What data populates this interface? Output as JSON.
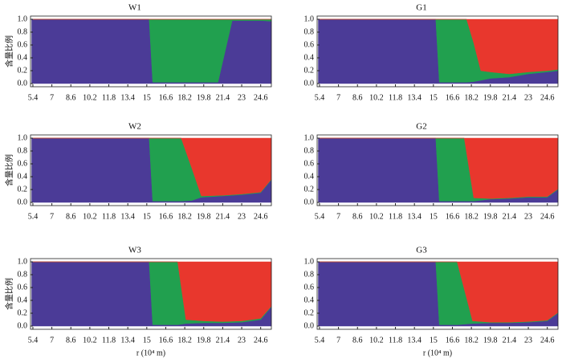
{
  "chart_data": [
    {
      "type": "area",
      "title": "W1",
      "ylabel": "含量比例",
      "x": [
        5.3,
        7,
        8.6,
        10.2,
        11.8,
        13.4,
        15.2,
        15.5,
        16.6,
        18.2,
        19.8,
        21.0,
        22.2,
        23,
        24.6,
        25.5
      ],
      "series": [
        {
          "name": "purple",
          "color": "#4b3b97",
          "values": [
            1,
            1,
            1,
            1,
            1,
            1,
            1,
            0.02,
            0.02,
            0.02,
            0.02,
            0.02,
            0.98,
            0.98,
            0.98,
            0.97
          ]
        },
        {
          "name": "green",
          "color": "#21a04f",
          "values": [
            0,
            0,
            0,
            0,
            0,
            0,
            0,
            0.98,
            0.98,
            0.98,
            0.98,
            0.98,
            0.02,
            0.02,
            0.02,
            0.03
          ]
        },
        {
          "name": "red",
          "color": "#e8372d",
          "values": [
            0,
            0,
            0,
            0,
            0,
            0,
            0,
            0,
            0,
            0,
            0,
            0,
            0,
            0,
            0,
            0
          ]
        }
      ],
      "xlim": [
        5.2,
        25.5
      ],
      "ylim": [
        -0.05,
        1.05
      ],
      "xticks": [
        5.4,
        7,
        8.6,
        10.2,
        11.8,
        13.4,
        15,
        16.6,
        18.2,
        19.8,
        21.4,
        23,
        24.6
      ],
      "yticks": [
        {
          "value": 0,
          "label": "0.0"
        },
        {
          "value": 0.2,
          "label": "0.2"
        },
        {
          "value": 0.4,
          "label": "0.4"
        },
        {
          "value": 0.6,
          "label": "0.6"
        },
        {
          "value": 0.8,
          "label": "0.8"
        },
        {
          "value": 1,
          "label": "1.0"
        }
      ]
    },
    {
      "type": "area",
      "title": "G1",
      "x": [
        5.3,
        7,
        8.6,
        10.2,
        11.8,
        13.4,
        15.2,
        15.5,
        16.6,
        17.8,
        18.4,
        19.0,
        19.8,
        21.4,
        23,
        24.6,
        25.5
      ],
      "series": [
        {
          "name": "purple",
          "color": "#4b3b97",
          "values": [
            1,
            1,
            1,
            1,
            1,
            1,
            1,
            0.02,
            0.02,
            0.02,
            0.03,
            0.05,
            0.08,
            0.1,
            0.15,
            0.18,
            0.2
          ]
        },
        {
          "name": "green",
          "color": "#21a04f",
          "values": [
            0,
            0,
            0,
            0,
            0,
            0,
            0,
            0.98,
            0.98,
            0.98,
            0.6,
            0.15,
            0.1,
            0.05,
            0.03,
            0.02,
            0.02
          ]
        },
        {
          "name": "red",
          "color": "#e8372d",
          "values": [
            0,
            0,
            0,
            0,
            0,
            0,
            0,
            0,
            0,
            0,
            0.37,
            0.8,
            0.82,
            0.85,
            0.82,
            0.8,
            0.78
          ]
        }
      ],
      "xlim": [
        5.2,
        25.5
      ],
      "ylim": [
        -0.05,
        1.05
      ],
      "xticks": [
        5.4,
        7,
        8.6,
        10.2,
        11.8,
        13.4,
        15,
        16.6,
        18.2,
        19.8,
        21.4,
        23,
        24.6
      ],
      "yticks": [
        {
          "value": 0,
          "label": "0.0"
        },
        {
          "value": 0.2,
          "label": "0.2"
        },
        {
          "value": 0.4,
          "label": "0.4"
        },
        {
          "value": 0.6,
          "label": "0.6"
        },
        {
          "value": 0.8,
          "label": "0.8"
        },
        {
          "value": 1,
          "label": "1.0"
        }
      ]
    },
    {
      "type": "area",
      "title": "W2",
      "ylabel": "含量比例",
      "x": [
        5.3,
        7,
        8.6,
        10.2,
        11.8,
        13.4,
        15.2,
        15.5,
        16.6,
        17.9,
        18.8,
        19.6,
        21.4,
        23,
        24.6,
        25.5
      ],
      "series": [
        {
          "name": "purple",
          "color": "#4b3b97",
          "values": [
            1,
            1,
            1,
            1,
            1,
            1,
            1,
            0.02,
            0.02,
            0.02,
            0.03,
            0.08,
            0.1,
            0.12,
            0.15,
            0.35
          ]
        },
        {
          "name": "green",
          "color": "#21a04f",
          "values": [
            0,
            0,
            0,
            0,
            0,
            0,
            0,
            0.98,
            0.98,
            0.98,
            0.5,
            0.02,
            0.01,
            0.01,
            0.01,
            0.01
          ]
        },
        {
          "name": "red",
          "color": "#e8372d",
          "values": [
            0,
            0,
            0,
            0,
            0,
            0,
            0,
            0,
            0,
            0,
            0.47,
            0.9,
            0.89,
            0.87,
            0.84,
            0.64
          ]
        }
      ],
      "xlim": [
        5.2,
        25.5
      ],
      "ylim": [
        -0.05,
        1.05
      ],
      "xticks": [
        5.4,
        7,
        8.6,
        10.2,
        11.8,
        13.4,
        15,
        16.6,
        18.2,
        19.8,
        21.4,
        23,
        24.6
      ],
      "yticks": [
        {
          "value": 0,
          "label": "0.0"
        },
        {
          "value": 0.2,
          "label": "0.2"
        },
        {
          "value": 0.4,
          "label": "0.4"
        },
        {
          "value": 0.6,
          "label": "0.6"
        },
        {
          "value": 0.8,
          "label": "0.8"
        },
        {
          "value": 1,
          "label": "1.0"
        }
      ]
    },
    {
      "type": "area",
      "title": "G2",
      "x": [
        5.3,
        7,
        8.6,
        10.2,
        11.8,
        13.4,
        15.2,
        15.5,
        16.6,
        17.6,
        18.4,
        19.8,
        21.4,
        23,
        24.6,
        25.5
      ],
      "series": [
        {
          "name": "purple",
          "color": "#4b3b97",
          "values": [
            1,
            1,
            1,
            1,
            1,
            1,
            1,
            0.02,
            0.02,
            0.02,
            0.02,
            0.05,
            0.06,
            0.08,
            0.08,
            0.2
          ]
        },
        {
          "name": "green",
          "color": "#21a04f",
          "values": [
            0,
            0,
            0,
            0,
            0,
            0,
            0,
            0.98,
            0.98,
            0.98,
            0.05,
            0.01,
            0.01,
            0.01,
            0.01,
            0.01
          ]
        },
        {
          "name": "red",
          "color": "#e8372d",
          "values": [
            0,
            0,
            0,
            0,
            0,
            0,
            0,
            0,
            0,
            0,
            0.93,
            0.94,
            0.93,
            0.91,
            0.91,
            0.79
          ]
        }
      ],
      "xlim": [
        5.2,
        25.5
      ],
      "ylim": [
        -0.05,
        1.05
      ],
      "xticks": [
        5.4,
        7,
        8.6,
        10.2,
        11.8,
        13.4,
        15,
        16.6,
        18.2,
        19.8,
        21.4,
        23,
        24.6
      ],
      "yticks": [
        {
          "value": 0,
          "label": "0.0"
        },
        {
          "value": 0.2,
          "label": "0.2"
        },
        {
          "value": 0.4,
          "label": "0.4"
        },
        {
          "value": 0.6,
          "label": "0.6"
        },
        {
          "value": 0.8,
          "label": "0.8"
        },
        {
          "value": 1,
          "label": "1.0"
        }
      ]
    },
    {
      "type": "area",
      "title": "W3",
      "ylabel": "含量比例",
      "xlabel": "r (10⁴ m)",
      "x": [
        5.3,
        7,
        8.6,
        10.2,
        11.8,
        13.4,
        15.2,
        15.5,
        16.6,
        17.6,
        18.3,
        19.8,
        21.4,
        23,
        24.6,
        25.5
      ],
      "series": [
        {
          "name": "purple",
          "color": "#4b3b97",
          "values": [
            1,
            1,
            1,
            1,
            1,
            1,
            1,
            0.02,
            0.02,
            0.02,
            0.04,
            0.05,
            0.05,
            0.06,
            0.1,
            0.3
          ]
        },
        {
          "name": "green",
          "color": "#21a04f",
          "values": [
            0,
            0,
            0,
            0,
            0,
            0,
            0,
            0.98,
            0.98,
            0.98,
            0.06,
            0.03,
            0.02,
            0.02,
            0.02,
            0.01
          ]
        },
        {
          "name": "red",
          "color": "#e8372d",
          "values": [
            0,
            0,
            0,
            0,
            0,
            0,
            0,
            0,
            0,
            0,
            0.9,
            0.92,
            0.93,
            0.92,
            0.88,
            0.69
          ]
        }
      ],
      "xlim": [
        5.2,
        25.5
      ],
      "ylim": [
        -0.05,
        1.05
      ],
      "xticks": [
        5.4,
        7,
        8.6,
        10.2,
        11.8,
        13.4,
        15,
        16.6,
        18.2,
        19.8,
        21.4,
        23,
        24.6
      ],
      "yticks": [
        {
          "value": 0,
          "label": "0.0"
        },
        {
          "value": 0.2,
          "label": "0.2"
        },
        {
          "value": 0.4,
          "label": "0.4"
        },
        {
          "value": 0.6,
          "label": "0.6"
        },
        {
          "value": 0.8,
          "label": "0.8"
        },
        {
          "value": 1,
          "label": "1.0"
        }
      ]
    },
    {
      "type": "area",
      "title": "G3",
      "xlabel": "r (10⁴ m)",
      "x": [
        5.3,
        7,
        8.6,
        10.2,
        11.8,
        13.4,
        15.2,
        15.5,
        16.3,
        17.0,
        18.3,
        19.8,
        21.4,
        23,
        24.6,
        25.5
      ],
      "series": [
        {
          "name": "purple",
          "color": "#4b3b97",
          "values": [
            1,
            1,
            1,
            1,
            1,
            1,
            1,
            0.02,
            0.02,
            0.02,
            0.04,
            0.05,
            0.05,
            0.06,
            0.08,
            0.2
          ]
        },
        {
          "name": "green",
          "color": "#21a04f",
          "values": [
            0,
            0,
            0,
            0,
            0,
            0,
            0,
            0.98,
            0.98,
            0.98,
            0.04,
            0.01,
            0.01,
            0.01,
            0.01,
            0.01
          ]
        },
        {
          "name": "red",
          "color": "#e8372d",
          "values": [
            0,
            0,
            0,
            0,
            0,
            0,
            0,
            0,
            0,
            0,
            0.92,
            0.94,
            0.94,
            0.93,
            0.91,
            0.79
          ]
        }
      ],
      "xlim": [
        5.2,
        25.5
      ],
      "ylim": [
        -0.05,
        1.05
      ],
      "xticks": [
        5.4,
        7,
        8.6,
        10.2,
        11.8,
        13.4,
        15,
        16.6,
        18.2,
        19.8,
        21.4,
        23,
        24.6
      ],
      "yticks": [
        {
          "value": 0,
          "label": "0.0"
        },
        {
          "value": 0.2,
          "label": "0.2"
        },
        {
          "value": 0.4,
          "label": "0.4"
        },
        {
          "value": 0.6,
          "label": "0.6"
        },
        {
          "value": 0.8,
          "label": "0.8"
        },
        {
          "value": 1,
          "label": "1.0"
        }
      ]
    }
  ]
}
